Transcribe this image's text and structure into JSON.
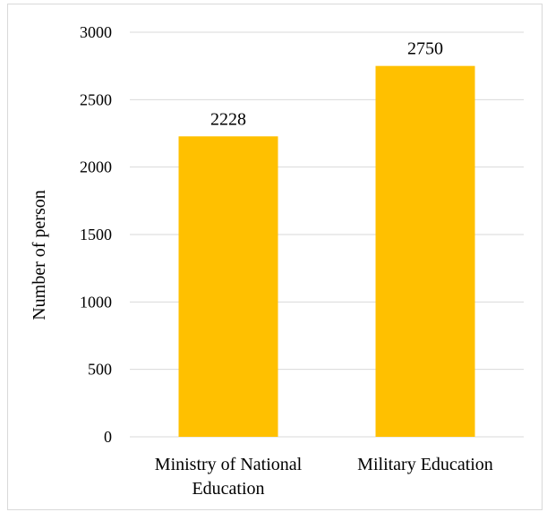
{
  "chart_data": {
    "type": "bar",
    "categories": [
      "Ministry of National Education",
      "Military Education"
    ],
    "category_label_lines": [
      [
        "Ministry of National",
        "Education"
      ],
      [
        "Military Education"
      ]
    ],
    "values": [
      2228,
      2750
    ],
    "data_labels": [
      "2228",
      "2750"
    ],
    "title": "",
    "xlabel": "",
    "ylabel": "Number of person",
    "ylim": [
      0,
      3000
    ],
    "yticks": [
      0,
      500,
      1000,
      1500,
      2000,
      2500,
      3000
    ],
    "grid": true,
    "legend": "none",
    "colors": {
      "bar": "#FFC000",
      "grid": "#D9D9D9",
      "axis": "#D9D9D9"
    }
  }
}
